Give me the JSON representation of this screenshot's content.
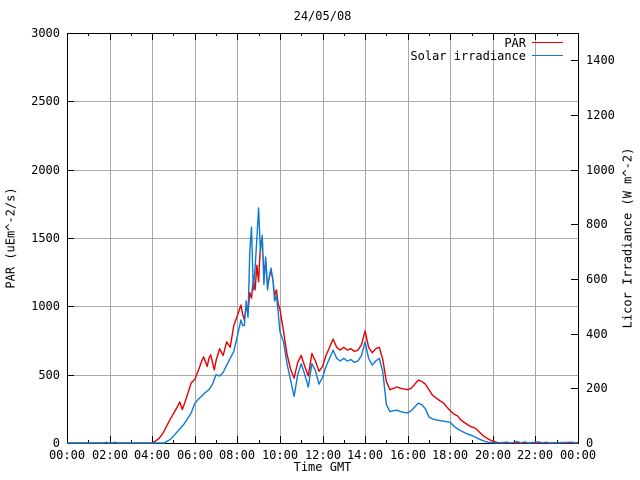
{
  "title": "24/05/08",
  "colors": {
    "par": "#e60000",
    "solar": "#0d7ad2",
    "grid": "#a9a9a9",
    "axis": "#000000",
    "background": "#ffffff"
  },
  "legend": {
    "position": "inside-top-right"
  },
  "chart_data": {
    "type": "line",
    "title": "24/05/08",
    "xlabel": "Time GMT",
    "ylabel_left": "PAR (uEm^-2/s)",
    "ylabel_right": "Licor Irradiance (W m^-2)",
    "grid": true,
    "ylim_left": [
      0,
      3000
    ],
    "yticks_left": [
      0,
      500,
      1000,
      1500,
      2000,
      2500,
      3000
    ],
    "ylim_right": [
      0,
      1500
    ],
    "yticks_right": [
      0,
      200,
      400,
      600,
      800,
      1000,
      1200,
      1400
    ],
    "x_range_minutes": [
      0,
      1440
    ],
    "x_tick_minutes": [
      0,
      120,
      240,
      360,
      480,
      600,
      720,
      840,
      960,
      1080,
      1200,
      1320,
      1440
    ],
    "x_tick_labels": [
      "00:00",
      "02:00",
      "04:00",
      "06:00",
      "08:00",
      "10:00",
      "12:00",
      "14:00",
      "16:00",
      "18:00",
      "20:00",
      "22:00",
      "00:00"
    ],
    "x_minor_tick_minutes": [
      60,
      180,
      300,
      420,
      540,
      660,
      780,
      900,
      1020,
      1140,
      1260,
      1380
    ],
    "series": [
      {
        "name": "PAR",
        "axis": "left",
        "color_key": "par",
        "units": "uEm^-2/s",
        "points": [
          [
            0,
            0
          ],
          [
            240,
            0
          ],
          [
            250,
            15
          ],
          [
            260,
            35
          ],
          [
            270,
            70
          ],
          [
            280,
            120
          ],
          [
            290,
            170
          ],
          [
            300,
            215
          ],
          [
            310,
            260
          ],
          [
            318,
            300
          ],
          [
            325,
            245
          ],
          [
            330,
            280
          ],
          [
            340,
            360
          ],
          [
            350,
            440
          ],
          [
            360,
            465
          ],
          [
            370,
            530
          ],
          [
            380,
            600
          ],
          [
            385,
            630
          ],
          [
            395,
            560
          ],
          [
            400,
            620
          ],
          [
            405,
            645
          ],
          [
            415,
            535
          ],
          [
            420,
            600
          ],
          [
            430,
            690
          ],
          [
            440,
            640
          ],
          [
            450,
            740
          ],
          [
            460,
            700
          ],
          [
            470,
            860
          ],
          [
            480,
            930
          ],
          [
            490,
            1010
          ],
          [
            495,
            940
          ],
          [
            500,
            900
          ],
          [
            505,
            1010
          ],
          [
            510,
            950
          ],
          [
            515,
            1100
          ],
          [
            520,
            1060
          ],
          [
            525,
            1200
          ],
          [
            530,
            1120
          ],
          [
            535,
            1300
          ],
          [
            540,
            1180
          ],
          [
            545,
            1450
          ],
          [
            550,
            1500
          ],
          [
            555,
            1220
          ],
          [
            560,
            1350
          ],
          [
            565,
            1150
          ],
          [
            570,
            1210
          ],
          [
            575,
            1260
          ],
          [
            580,
            1200
          ],
          [
            585,
            1080
          ],
          [
            590,
            1120
          ],
          [
            595,
            1020
          ],
          [
            600,
            980
          ],
          [
            610,
            820
          ],
          [
            620,
            650
          ],
          [
            630,
            540
          ],
          [
            640,
            475
          ],
          [
            650,
            590
          ],
          [
            660,
            640
          ],
          [
            670,
            560
          ],
          [
            680,
            490
          ],
          [
            690,
            655
          ],
          [
            700,
            600
          ],
          [
            710,
            525
          ],
          [
            720,
            560
          ],
          [
            730,
            640
          ],
          [
            740,
            700
          ],
          [
            750,
            760
          ],
          [
            760,
            700
          ],
          [
            770,
            680
          ],
          [
            780,
            700
          ],
          [
            790,
            680
          ],
          [
            800,
            690
          ],
          [
            810,
            670
          ],
          [
            820,
            680
          ],
          [
            830,
            720
          ],
          [
            840,
            820
          ],
          [
            850,
            700
          ],
          [
            860,
            660
          ],
          [
            870,
            690
          ],
          [
            880,
            700
          ],
          [
            890,
            610
          ],
          [
            900,
            450
          ],
          [
            910,
            390
          ],
          [
            920,
            400
          ],
          [
            930,
            410
          ],
          [
            940,
            400
          ],
          [
            950,
            395
          ],
          [
            960,
            390
          ],
          [
            970,
            400
          ],
          [
            980,
            430
          ],
          [
            990,
            460
          ],
          [
            1000,
            450
          ],
          [
            1010,
            430
          ],
          [
            1020,
            390
          ],
          [
            1030,
            350
          ],
          [
            1040,
            330
          ],
          [
            1050,
            310
          ],
          [
            1060,
            295
          ],
          [
            1070,
            265
          ],
          [
            1080,
            235
          ],
          [
            1090,
            212
          ],
          [
            1100,
            200
          ],
          [
            1110,
            168
          ],
          [
            1120,
            150
          ],
          [
            1130,
            132
          ],
          [
            1140,
            118
          ],
          [
            1150,
            110
          ],
          [
            1160,
            85
          ],
          [
            1170,
            60
          ],
          [
            1180,
            40
          ],
          [
            1190,
            25
          ],
          [
            1200,
            14
          ],
          [
            1210,
            6
          ],
          [
            1220,
            0
          ],
          [
            1440,
            0
          ]
        ]
      },
      {
        "name": "Solar irradiance",
        "axis": "right",
        "color_key": "solar",
        "units": "W m^-2",
        "points": [
          [
            0,
            0
          ],
          [
            105,
            0
          ],
          [
            110,
            3
          ],
          [
            115,
            0
          ],
          [
            130,
            0
          ],
          [
            135,
            3
          ],
          [
            140,
            0
          ],
          [
            275,
            0
          ],
          [
            280,
            5
          ],
          [
            290,
            12
          ],
          [
            300,
            25
          ],
          [
            310,
            40
          ],
          [
            320,
            55
          ],
          [
            330,
            70
          ],
          [
            340,
            90
          ],
          [
            350,
            110
          ],
          [
            360,
            145
          ],
          [
            370,
            160
          ],
          [
            380,
            172
          ],
          [
            390,
            185
          ],
          [
            400,
            195
          ],
          [
            410,
            215
          ],
          [
            420,
            250
          ],
          [
            430,
            245
          ],
          [
            440,
            258
          ],
          [
            450,
            285
          ],
          [
            460,
            310
          ],
          [
            470,
            335
          ],
          [
            480,
            390
          ],
          [
            490,
            450
          ],
          [
            495,
            430
          ],
          [
            500,
            430
          ],
          [
            505,
            520
          ],
          [
            510,
            460
          ],
          [
            515,
            700
          ],
          [
            520,
            790
          ],
          [
            525,
            560
          ],
          [
            530,
            640
          ],
          [
            535,
            750
          ],
          [
            540,
            860
          ],
          [
            545,
            700
          ],
          [
            550,
            760
          ],
          [
            555,
            580
          ],
          [
            560,
            680
          ],
          [
            565,
            560
          ],
          [
            570,
            610
          ],
          [
            575,
            640
          ],
          [
            580,
            600
          ],
          [
            585,
            520
          ],
          [
            590,
            540
          ],
          [
            595,
            480
          ],
          [
            600,
            408
          ],
          [
            610,
            370
          ],
          [
            620,
            290
          ],
          [
            630,
            230
          ],
          [
            640,
            170
          ],
          [
            650,
            250
          ],
          [
            660,
            290
          ],
          [
            670,
            250
          ],
          [
            680,
            205
          ],
          [
            690,
            290
          ],
          [
            700,
            265
          ],
          [
            710,
            215
          ],
          [
            720,
            240
          ],
          [
            730,
            280
          ],
          [
            740,
            310
          ],
          [
            750,
            340
          ],
          [
            760,
            310
          ],
          [
            770,
            300
          ],
          [
            780,
            310
          ],
          [
            790,
            300
          ],
          [
            800,
            305
          ],
          [
            810,
            295
          ],
          [
            820,
            300
          ],
          [
            830,
            320
          ],
          [
            840,
            370
          ],
          [
            850,
            310
          ],
          [
            860,
            285
          ],
          [
            870,
            300
          ],
          [
            880,
            310
          ],
          [
            890,
            260
          ],
          [
            900,
            140
          ],
          [
            910,
            115
          ],
          [
            920,
            118
          ],
          [
            930,
            120
          ],
          [
            940,
            115
          ],
          [
            950,
            112
          ],
          [
            960,
            110
          ],
          [
            970,
            118
          ],
          [
            980,
            132
          ],
          [
            990,
            146
          ],
          [
            1000,
            140
          ],
          [
            1010,
            125
          ],
          [
            1020,
            95
          ],
          [
            1030,
            88
          ],
          [
            1040,
            85
          ],
          [
            1050,
            82
          ],
          [
            1060,
            80
          ],
          [
            1070,
            78
          ],
          [
            1080,
            75
          ],
          [
            1090,
            62
          ],
          [
            1100,
            52
          ],
          [
            1110,
            45
          ],
          [
            1120,
            38
          ],
          [
            1130,
            32
          ],
          [
            1140,
            28
          ],
          [
            1150,
            22
          ],
          [
            1160,
            15
          ],
          [
            1170,
            10
          ],
          [
            1180,
            5
          ],
          [
            1190,
            2
          ],
          [
            1200,
            1
          ],
          [
            1210,
            0
          ],
          [
            1240,
            3
          ],
          [
            1250,
            0
          ],
          [
            1270,
            5
          ],
          [
            1280,
            0
          ],
          [
            1290,
            4
          ],
          [
            1300,
            0
          ],
          [
            1330,
            4
          ],
          [
            1340,
            0
          ],
          [
            1350,
            3
          ],
          [
            1360,
            0
          ],
          [
            1425,
            3
          ],
          [
            1430,
            0
          ],
          [
            1435,
            2
          ],
          [
            1440,
            0
          ]
        ]
      }
    ]
  }
}
